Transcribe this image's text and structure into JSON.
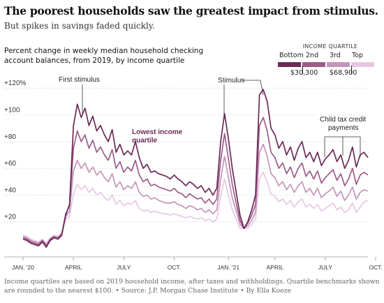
{
  "header": {
    "title": "The poorest households saw the greatest impact from stimulus.",
    "subtitle": "But spikes in savings faded quickly.",
    "description": "Percent change in weekly median household checking account balances, from 2019, by income quartile"
  },
  "legend": {
    "title": "INCOME QUARTILE",
    "labels": [
      "Bottom",
      "2nd",
      "3rd",
      "Top"
    ],
    "benchmarks": [
      "$30,300",
      "$68,900"
    ],
    "colors": [
      "#6b2a57",
      "#9c5c89",
      "#c495ba",
      "#e8c7e2"
    ]
  },
  "annotations": {
    "first_stimulus": "First stimulus",
    "stimulus": "Stimulus",
    "lowest_income_line1": "Lowest income",
    "lowest_income_line2": "quartile",
    "child_tax_line1": "Child tax credit",
    "child_tax_line2": "payments"
  },
  "footnote": "Income quartiles are based on 2019 household income, after taxes and withholdings. Quartile benchmarks shown are rounded to the nearest $100.  •  Source: J.P. Morgan Chase Institute  •  By Ella Koeze",
  "chart_data": {
    "type": "line",
    "ylabel": "Percent change",
    "ylim": [
      0,
      125
    ],
    "yticks": [
      20,
      40,
      60,
      80,
      100,
      120
    ],
    "ytick_labels": [
      "+20",
      "+40",
      "+60",
      "+80",
      "+100",
      "+120%"
    ],
    "xticks": [
      0,
      13,
      26,
      39,
      53,
      65,
      78,
      91
    ],
    "xtick_labels": [
      "JAN. '20",
      "APRIL",
      "JULY",
      "OCT.",
      "JAN. '21",
      "APRIL",
      "JULY",
      "OCT."
    ],
    "x_unit": "week index from first week of Jan. 2020",
    "series": [
      {
        "name": "Bottom",
        "values": [
          7,
          6,
          4,
          3,
          2,
          5,
          1,
          6,
          8,
          7,
          10,
          25,
          33,
          92,
          108,
          98,
          105,
          92,
          99,
          88,
          92,
          85,
          80,
          89,
          72,
          78,
          70,
          73,
          70,
          80,
          68,
          60,
          63,
          57,
          58,
          56,
          55,
          54,
          52,
          55,
          52,
          50,
          47,
          50,
          48,
          45,
          47,
          42,
          45,
          40,
          45,
          80,
          101,
          82,
          60,
          42,
          25,
          15,
          20,
          29,
          40,
          115,
          119,
          110,
          90,
          85,
          75,
          80,
          70,
          76,
          66,
          75,
          80,
          68,
          72,
          65,
          72,
          62,
          67,
          70,
          74,
          65,
          70,
          60,
          66,
          76,
          61,
          70,
          72,
          68
        ]
      },
      {
        "name": "2nd",
        "values": [
          8,
          7,
          5,
          4,
          3,
          6,
          2,
          7,
          9,
          8,
          11,
          26,
          32,
          75,
          88,
          80,
          85,
          75,
          81,
          72,
          76,
          70,
          66,
          74,
          60,
          65,
          57,
          61,
          58,
          66,
          55,
          50,
          52,
          47,
          48,
          46,
          45,
          44,
          43,
          45,
          42,
          41,
          38,
          41,
          39,
          37,
          38,
          34,
          37,
          33,
          37,
          66,
          86,
          67,
          48,
          34,
          21,
          15,
          19,
          25,
          33,
          92,
          98,
          88,
          72,
          68,
          60,
          64,
          56,
          61,
          53,
          60,
          64,
          54,
          58,
          52,
          58,
          49,
          53,
          56,
          59,
          51,
          56,
          47,
          52,
          60,
          48,
          55,
          57,
          55
        ]
      },
      {
        "name": "3rd",
        "values": [
          9,
          8,
          6,
          5,
          4,
          6,
          3,
          7,
          9,
          8,
          11,
          24,
          28,
          58,
          66,
          60,
          64,
          57,
          61,
          55,
          58,
          53,
          50,
          56,
          46,
          50,
          44,
          47,
          45,
          50,
          42,
          39,
          40,
          37,
          38,
          36,
          35,
          34,
          34,
          35,
          33,
          32,
          30,
          32,
          31,
          29,
          30,
          27,
          29,
          26,
          29,
          52,
          69,
          53,
          38,
          28,
          18,
          15,
          17,
          21,
          27,
          72,
          78,
          69,
          56,
          53,
          47,
          50,
          44,
          48,
          42,
          47,
          50,
          42,
          45,
          40,
          45,
          38,
          41,
          43,
          46,
          39,
          43,
          36,
          40,
          46,
          37,
          42,
          44,
          43
        ]
      },
      {
        "name": "Top",
        "values": [
          10,
          9,
          7,
          6,
          5,
          7,
          4,
          8,
          10,
          9,
          12,
          22,
          24,
          41,
          48,
          44,
          47,
          42,
          45,
          40,
          42,
          38,
          36,
          40,
          33,
          36,
          32,
          34,
          33,
          36,
          30,
          28,
          29,
          27,
          28,
          27,
          26,
          26,
          25,
          26,
          25,
          24,
          23,
          24,
          23,
          22,
          23,
          21,
          22,
          20,
          22,
          39,
          52,
          40,
          29,
          22,
          15,
          16,
          15,
          18,
          22,
          52,
          57,
          50,
          41,
          39,
          35,
          37,
          33,
          36,
          31,
          35,
          37,
          31,
          33,
          30,
          33,
          28,
          30,
          32,
          34,
          29,
          31,
          27,
          29,
          34,
          27,
          31,
          35,
          36
        ]
      }
    ]
  }
}
